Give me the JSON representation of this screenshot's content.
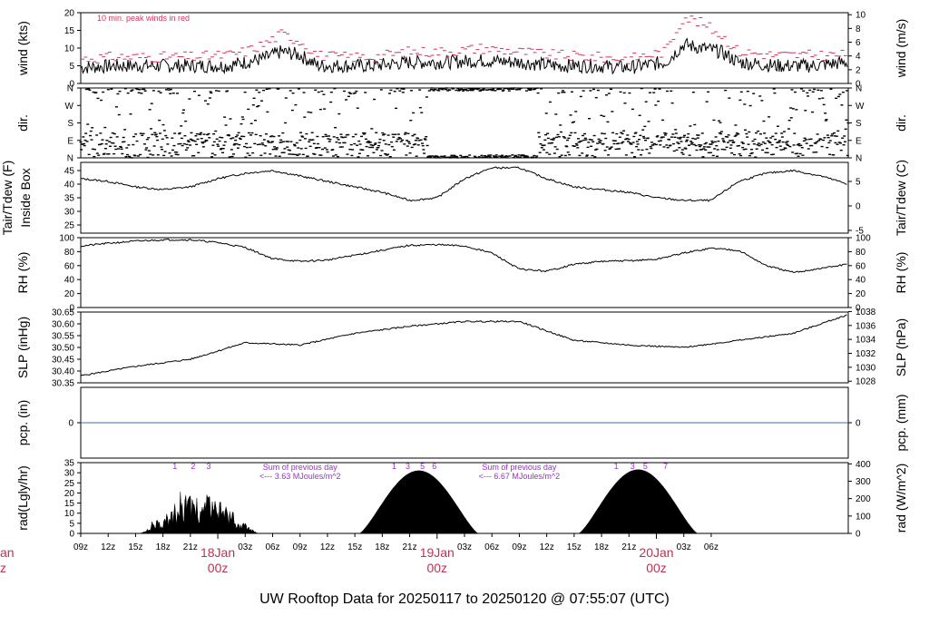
{
  "page": {
    "footer_title": "UW Rooftop Data for 20250117  to  20250120 @ 07:55:07  (UTC)"
  },
  "colors": {
    "peak": "#d0385a",
    "rad_label": "#9a2fd0",
    "day_label": "#c03050",
    "footer": "#2a90d8",
    "pcp_line": "#3a6fc0"
  },
  "chart_data": [
    {
      "type": "line",
      "panel": "wind",
      "ylabel": "wind (kts)",
      "ylabel_right": "wind (m/s)",
      "ylim": [
        0,
        20
      ],
      "yticks": [
        0,
        5,
        10,
        15,
        20
      ],
      "yticks_right": [
        0,
        2,
        4,
        6,
        8,
        10
      ],
      "annotation": "10 min. peak winds in red",
      "series": [
        {
          "role": "mean",
          "x_hours": [
            0,
            4,
            8,
            12,
            16,
            18,
            20,
            22,
            24,
            26,
            28,
            32,
            36,
            40,
            44,
            48,
            52,
            56,
            60,
            64,
            66,
            68,
            70,
            72,
            76,
            80,
            84
          ],
          "values": [
            4.5,
            5,
            5,
            5,
            5,
            6,
            7,
            9,
            8,
            5,
            5,
            5,
            6,
            6,
            6.5,
            6,
            5,
            5,
            4.5,
            6,
            11,
            10,
            9,
            6,
            5,
            5,
            6
          ]
        },
        {
          "role": "peak",
          "x_hours": [
            0,
            4,
            8,
            12,
            16,
            18,
            20,
            22,
            24,
            26,
            28,
            32,
            36,
            40,
            44,
            48,
            52,
            56,
            60,
            64,
            66,
            68,
            70,
            72,
            76,
            80,
            84
          ],
          "values": [
            7,
            7.5,
            7.5,
            7.5,
            8,
            9,
            11,
            14,
            12,
            8,
            7.5,
            7.5,
            9,
            9,
            10,
            9,
            8,
            7.5,
            7,
            9,
            19,
            17,
            14,
            9,
            8,
            8,
            8
          ]
        }
      ]
    },
    {
      "type": "scatter",
      "panel": "dir",
      "ylabel": "dir.",
      "categories": [
        "N",
        "E",
        "S",
        "W",
        "N"
      ],
      "ylabels_right": [
        "N",
        "E",
        "S",
        "W",
        "N"
      ]
    },
    {
      "type": "line",
      "panel": "temp",
      "ylabel": "Tair/Tdew (F)",
      "ylabel2": "Inside Box",
      "ylabel_right": "Tair/Tdew (C)",
      "ylim": [
        22,
        48
      ],
      "yticks": [
        25,
        30,
        35,
        40,
        45
      ],
      "yticks_right": [
        -5,
        0,
        5
      ],
      "x_hours": [
        0,
        3,
        6,
        9,
        12,
        15,
        18,
        21,
        24,
        27,
        30,
        33,
        36,
        39,
        42,
        45,
        48,
        51,
        54,
        57,
        60,
        63,
        66,
        69,
        72,
        75,
        78,
        81,
        84
      ],
      "values": [
        42,
        41,
        39,
        38,
        39,
        42,
        44,
        45,
        43,
        41,
        39,
        37,
        34,
        35,
        42,
        46,
        46,
        42,
        39,
        38,
        37,
        35,
        34,
        34,
        41,
        44,
        45,
        43,
        40
      ]
    },
    {
      "type": "line",
      "panel": "rh",
      "ylabel": "RH (%)",
      "ylabel_right": "RH (%)",
      "ylim": [
        0,
        100
      ],
      "yticks": [
        0,
        20,
        40,
        60,
        80,
        100
      ],
      "x_hours": [
        0,
        3,
        6,
        9,
        12,
        15,
        18,
        21,
        24,
        27,
        30,
        33,
        36,
        39,
        42,
        45,
        48,
        51,
        54,
        57,
        60,
        63,
        66,
        69,
        72,
        75,
        78,
        81,
        84
      ],
      "values": [
        88,
        92,
        95,
        97,
        97,
        93,
        86,
        70,
        66,
        68,
        75,
        82,
        89,
        90,
        88,
        78,
        55,
        52,
        62,
        66,
        67,
        69,
        78,
        85,
        82,
        60,
        50,
        56,
        62
      ]
    },
    {
      "type": "line",
      "panel": "slp",
      "ylabel": "SLP (inHg)",
      "ylabel_right": "SLP (hPa)",
      "ylim": [
        30.35,
        30.65
      ],
      "yticks": [
        30.35,
        30.4,
        30.45,
        30.5,
        30.55,
        30.6,
        30.65
      ],
      "yticks_right": [
        1028,
        1030,
        1032,
        1034,
        1036,
        1038
      ],
      "x_hours": [
        0,
        6,
        12,
        18,
        24,
        30,
        36,
        42,
        48,
        54,
        60,
        66,
        72,
        78,
        84
      ],
      "values": [
        30.38,
        30.42,
        30.45,
        30.52,
        30.51,
        30.56,
        30.59,
        30.61,
        30.61,
        30.53,
        30.51,
        30.5,
        30.53,
        30.56,
        30.64
      ]
    },
    {
      "type": "line",
      "panel": "pcp",
      "ylabel": "pcp. (in)",
      "ylabel_right": "pcp. (mm)",
      "yticks": [
        0
      ],
      "yticks_right": [
        0
      ],
      "x_hours": [
        0,
        84
      ],
      "values": [
        0,
        0
      ]
    },
    {
      "type": "area",
      "panel": "rad",
      "ylabel": "rad(Lgly/hr)",
      "ylabel_right": "rad (W/m^2)",
      "ylim": [
        0,
        35
      ],
      "yticks": [
        0,
        5,
        10,
        15,
        20,
        25,
        30,
        35
      ],
      "yticks_right": [
        0,
        100,
        200,
        300,
        400
      ],
      "days": [
        {
          "start_hour": 6.5,
          "end_hour": 19.5,
          "peak": 20,
          "cloudy": true
        },
        {
          "start_hour": 30.5,
          "end_hour": 43.5,
          "peak": 31,
          "cloudy": false
        },
        {
          "start_hour": 54.5,
          "end_hour": 67.5,
          "peak": 31.5,
          "cloudy": false
        }
      ],
      "markers": [
        {
          "x_hour": 10.3,
          "label": "1"
        },
        {
          "x_hour": 12.3,
          "label": "2"
        },
        {
          "x_hour": 14.0,
          "label": "3"
        },
        {
          "x_hour": 34.3,
          "label": "1"
        },
        {
          "x_hour": 35.8,
          "label": "3"
        },
        {
          "x_hour": 37.4,
          "label": "5"
        },
        {
          "x_hour": 38.7,
          "label": "6"
        },
        {
          "x_hour": 58.6,
          "label": "1"
        },
        {
          "x_hour": 60.4,
          "label": "3"
        },
        {
          "x_hour": 61.8,
          "label": "5"
        },
        {
          "x_hour": 64.0,
          "label": "7"
        }
      ],
      "annotations": [
        {
          "x_hour": 24.0,
          "line1": "Sum of previous day",
          "line2": "<--- 3.63 MJoules/m^2"
        },
        {
          "x_hour": 48.0,
          "line1": "Sum of previous day",
          "line2": "<--- 6.67 MJoules/m^2"
        }
      ]
    }
  ],
  "x_axis": {
    "tick_labels": [
      "09z",
      "12z",
      "15z",
      "18z",
      "21z",
      "03z",
      "06z",
      "09z",
      "12z",
      "15z",
      "18z",
      "21z",
      "03z",
      "06z",
      "09z",
      "12z",
      "15z",
      "18z",
      "21z",
      "03z",
      "06z"
    ],
    "tick_hours": [
      0,
      3,
      6,
      9,
      12,
      18,
      21,
      24,
      27,
      30,
      33,
      36,
      42,
      45,
      48,
      51,
      54,
      57,
      60,
      66,
      69
    ],
    "day_markers": [
      {
        "hour": 15,
        "date": "18Jan",
        "time": "00z"
      },
      {
        "hour": 39,
        "date": "19Jan",
        "time": "00z"
      },
      {
        "hour": 63,
        "date": "20Jan",
        "time": "00z"
      }
    ],
    "partial_left": {
      "date": "an",
      "time": "z"
    }
  }
}
